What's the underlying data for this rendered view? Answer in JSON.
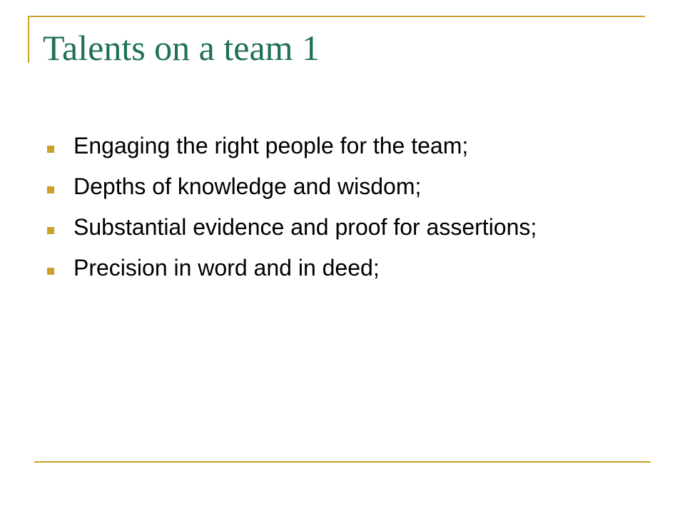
{
  "slide": {
    "title": "Talents on a team 1",
    "bullets": [
      {
        "text": "Engaging the right people for the team;"
      },
      {
        "text": "Depths of knowledge and wisdom;"
      },
      {
        "text": "Substantial evidence and proof for assertions;"
      },
      {
        "text": "Precision in word and in deed;"
      }
    ]
  },
  "colors": {
    "accent_rule": "#c9a227",
    "bullet": "#c9a227",
    "title": "#1e7050",
    "body_text": "#000000",
    "background": "#ffffff"
  },
  "icons": {
    "bullet": "square-bullet-icon"
  }
}
